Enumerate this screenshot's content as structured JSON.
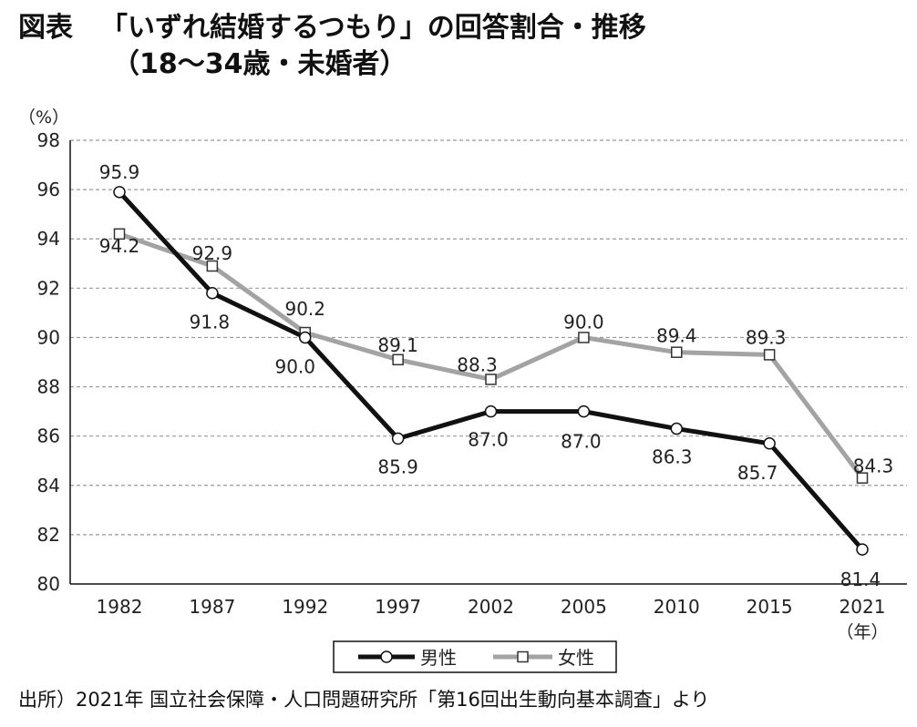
{
  "title": {
    "label": "図表",
    "main": "「いずれ結婚するつもり」の回答割合・推移",
    "sub": "（18～34歳・未婚者）"
  },
  "source": "出所）2021年 国立社会保障・人口問題研究所「第16回出生動向基本調査」より",
  "colors": {
    "male": "#111111",
    "female": "#a3a3a3",
    "grid": "#999999"
  },
  "chart_data": {
    "type": "line",
    "ylabel": "（%）",
    "xlabel": "（年）",
    "ylim": [
      80,
      98
    ],
    "yticks": [
      80,
      82,
      84,
      86,
      88,
      90,
      92,
      94,
      96,
      98
    ],
    "categories": [
      "1982",
      "1987",
      "1992",
      "1997",
      "2002",
      "2005",
      "2010",
      "2015",
      "2021"
    ],
    "grid": true,
    "legend_position": "bottom",
    "series": [
      {
        "name": "男性",
        "marker": "circle",
        "values": [
          95.9,
          91.8,
          90.0,
          85.9,
          87.0,
          87.0,
          86.3,
          85.7,
          81.4
        ]
      },
      {
        "name": "女性",
        "marker": "square",
        "values": [
          94.2,
          92.9,
          90.2,
          89.1,
          88.3,
          90.0,
          89.4,
          89.3,
          84.3
        ]
      }
    ]
  }
}
